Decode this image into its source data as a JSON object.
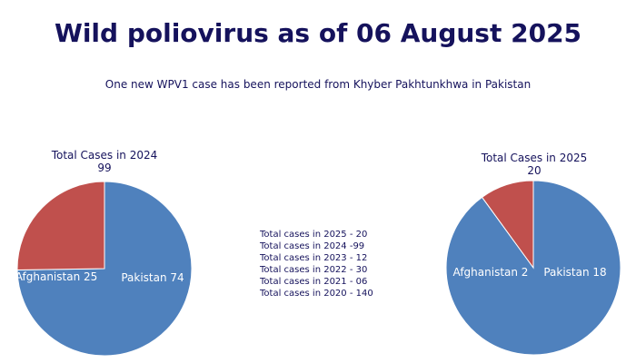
{
  "title": "Wild poliovirus as of 06 August 2025",
  "subtitle": "One new WPV1 case has been reported from Khyber Pakhtunkhwa in Pakistan",
  "colors": {
    "pakistan": "#4f81bd",
    "afghanistan": "#c0504d",
    "text": "#15125c"
  },
  "chart_data": [
    {
      "type": "pie",
      "title": "Total Cases in 2024",
      "total_label": "99",
      "slices": [
        {
          "name": "Pakistan",
          "value": 74,
          "label": "Pakistan 74"
        },
        {
          "name": "Afghanistan",
          "value": 25,
          "label": "Afghanistan 25"
        }
      ]
    },
    {
      "type": "pie",
      "title": "Total Cases in 2025",
      "total_label": "20",
      "slices": [
        {
          "name": "Pakistan",
          "value": 18,
          "label": "Pakistan 18"
        },
        {
          "name": "Afghanistan",
          "value": 2,
          "label": "Afghanistan 2"
        }
      ]
    }
  ],
  "totals": [
    "Total cases in 2025 - 20",
    "Total cases in 2024 -99",
    "Total cases in 2023 - 12",
    "Total cases in 2022 - 30",
    "Total cases in 2021 - 06",
    "Total cases in 2020 - 140"
  ]
}
